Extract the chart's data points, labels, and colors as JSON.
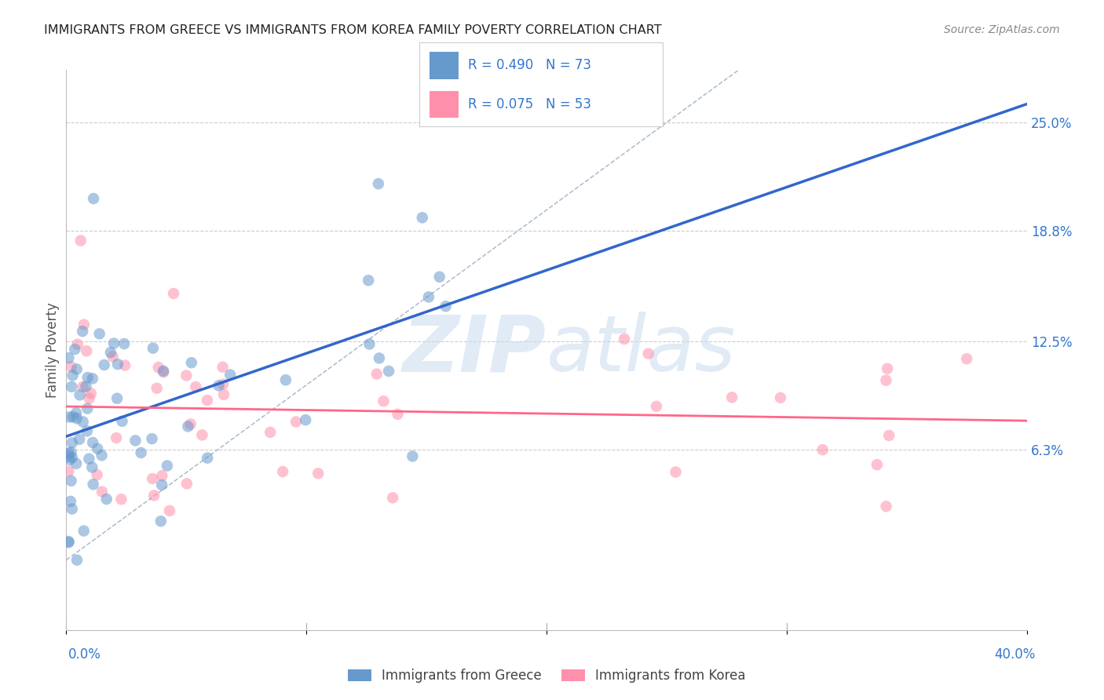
{
  "title": "IMMIGRANTS FROM GREECE VS IMMIGRANTS FROM KOREA FAMILY POVERTY CORRELATION CHART",
  "source": "Source: ZipAtlas.com",
  "ylabel": "Family Poverty",
  "right_yticks": [
    "25.0%",
    "18.8%",
    "12.5%",
    "6.3%"
  ],
  "right_ytick_vals": [
    0.25,
    0.188,
    0.125,
    0.063
  ],
  "xlim": [
    0.0,
    0.4
  ],
  "ylim": [
    -0.04,
    0.28
  ],
  "greece_color": "#6699CC",
  "korea_color": "#FF8FAB",
  "regression_greece_color": "#3366CC",
  "regression_korea_color": "#FF6688",
  "diagonal_color": "#AABBCC",
  "R_greece": 0.49,
  "N_greece": 73,
  "R_korea": 0.075,
  "N_korea": 53,
  "background_color": "#FFFFFF",
  "grid_color": "#CCCCCC",
  "title_color": "#222222",
  "label_color": "#3377CC",
  "watermark_color": "#C5D8EE",
  "watermark_alpha": 0.5
}
